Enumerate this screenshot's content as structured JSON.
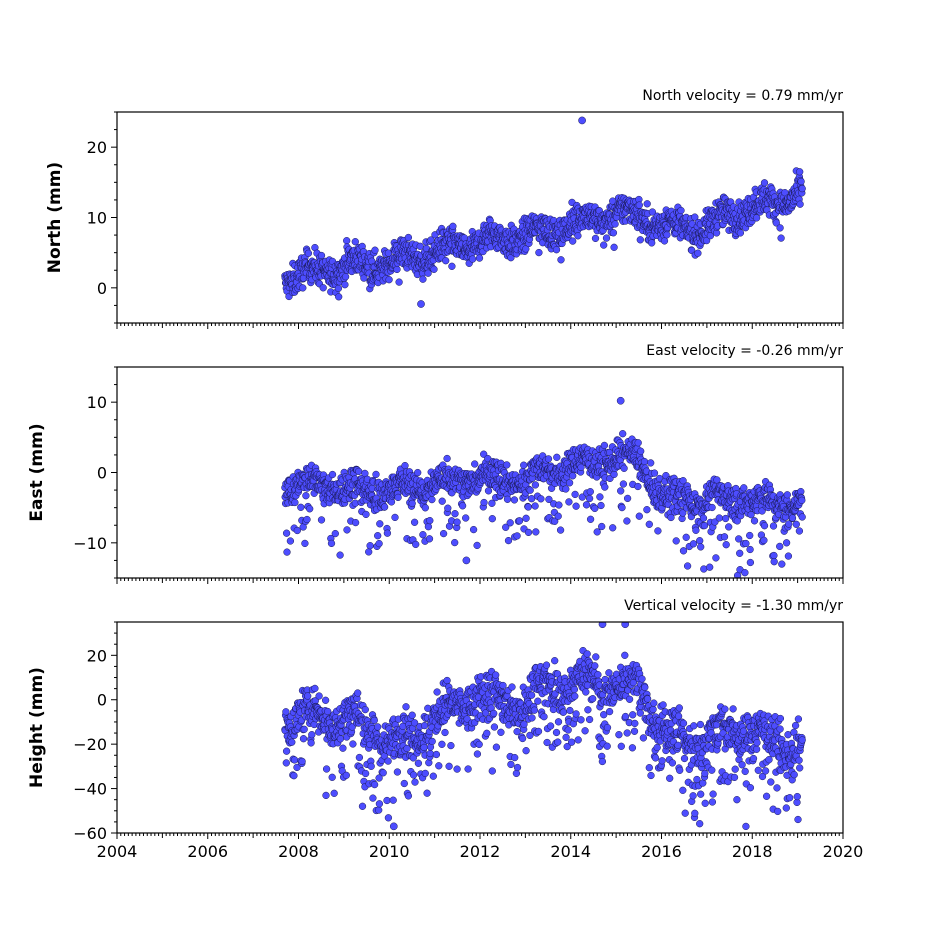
{
  "chart_data": [
    {
      "type": "scatter",
      "title": "North velocity = 0.79 mm/yr",
      "ylabel": "North (mm)",
      "xlim": [
        2004,
        2020
      ],
      "ylim": [
        -5,
        25
      ],
      "yticks": [
        0,
        10,
        20
      ],
      "xticks": [
        2004,
        2006,
        2008,
        2010,
        2012,
        2014,
        2016,
        2018,
        2020
      ],
      "tick_labels_x_shown": false,
      "marker_color": "#4d4dff",
      "x_range": [
        2007.7,
        2019.1
      ],
      "series": [
        {
          "x": [
            2007.8,
            2008.5,
            2009.0,
            2009.5,
            2010.0,
            2010.5,
            2011.0,
            2011.5,
            2012.0,
            2012.5,
            2013.0,
            2013.5,
            2014.0,
            2014.5,
            2015.0,
            2015.5,
            2016.0,
            2016.5,
            2017.0,
            2017.5,
            2018.0,
            2018.5,
            2019.0
          ],
          "y": [
            1.5,
            2.5,
            3.0,
            3.5,
            3.5,
            4.5,
            5.0,
            6.0,
            6.5,
            7.0,
            7.5,
            8.0,
            9.0,
            10.0,
            10.5,
            10.5,
            9.0,
            8.5,
            8.5,
            10.5,
            11.5,
            12.0,
            13.5
          ]
        }
      ],
      "outliers": [
        {
          "x": 2014.25,
          "y": 23.8
        },
        {
          "x": 2010.7,
          "y": -2.3
        }
      ]
    },
    {
      "type": "scatter",
      "title": "East velocity = -0.26 mm/yr",
      "ylabel": "East (mm)",
      "xlim": [
        2004,
        2020
      ],
      "ylim": [
        -15,
        15
      ],
      "yticks": [
        -10,
        0,
        10
      ],
      "xticks": [
        2004,
        2006,
        2008,
        2010,
        2012,
        2014,
        2016,
        2018,
        2020
      ],
      "tick_labels_x_shown": false,
      "marker_color": "#4d4dff",
      "x_range": [
        2007.7,
        2019.1
      ],
      "series": [
        {
          "x": [
            2007.8,
            2008.5,
            2009.0,
            2009.5,
            2010.0,
            2010.5,
            2011.0,
            2011.5,
            2012.0,
            2012.5,
            2013.0,
            2013.5,
            2014.0,
            2014.5,
            2015.0,
            2015.5,
            2016.0,
            2016.5,
            2017.0,
            2017.5,
            2018.0,
            2018.5,
            2019.0
          ],
          "y": [
            -2.0,
            -1.5,
            -2.0,
            -2.5,
            -2.5,
            -2.0,
            -1.5,
            -1.0,
            -0.5,
            -1.0,
            -1.0,
            0.5,
            1.0,
            1.5,
            2.0,
            2.0,
            -3.5,
            -3.5,
            -4.0,
            -3.5,
            -4.0,
            -4.5,
            -4.0
          ]
        }
      ],
      "outliers": [
        {
          "x": 2015.1,
          "y": 10.2
        },
        {
          "x": 2011.7,
          "y": -12.5
        }
      ]
    },
    {
      "type": "scatter",
      "title": "Vertical velocity = -1.30 mm/yr",
      "ylabel": "Height (mm)",
      "xlabel": "",
      "xlim": [
        2004,
        2020
      ],
      "ylim": [
        -60,
        35
      ],
      "yticks": [
        -60,
        -40,
        -20,
        0,
        20
      ],
      "xticks": [
        2004,
        2006,
        2008,
        2010,
        2012,
        2014,
        2016,
        2018,
        2020
      ],
      "xtick_labels": [
        "2004",
        "2006",
        "2008",
        "2010",
        "2012",
        "2014",
        "2016",
        "2018",
        "2020"
      ],
      "tick_labels_x_shown": true,
      "marker_color": "#4d4dff",
      "x_range": [
        2007.7,
        2019.1
      ],
      "series": [
        {
          "x": [
            2007.8,
            2008.5,
            2009.0,
            2009.5,
            2010.0,
            2010.5,
            2011.0,
            2011.5,
            2012.0,
            2012.5,
            2013.0,
            2013.5,
            2014.0,
            2014.5,
            2015.0,
            2015.5,
            2016.0,
            2016.5,
            2017.0,
            2017.5,
            2018.0,
            2018.5,
            2019.0
          ],
          "y": [
            -8,
            -6,
            -8,
            -10,
            -20,
            -15,
            -8,
            -3,
            2,
            0,
            -2,
            8,
            5,
            10,
            5,
            8,
            -15,
            -17,
            -18,
            -12,
            -15,
            -18,
            -22
          ]
        }
      ],
      "outliers": [
        {
          "x": 2014.7,
          "y": 34
        },
        {
          "x": 2015.2,
          "y": 34
        },
        {
          "x": 2010.1,
          "y": -57
        }
      ]
    }
  ]
}
